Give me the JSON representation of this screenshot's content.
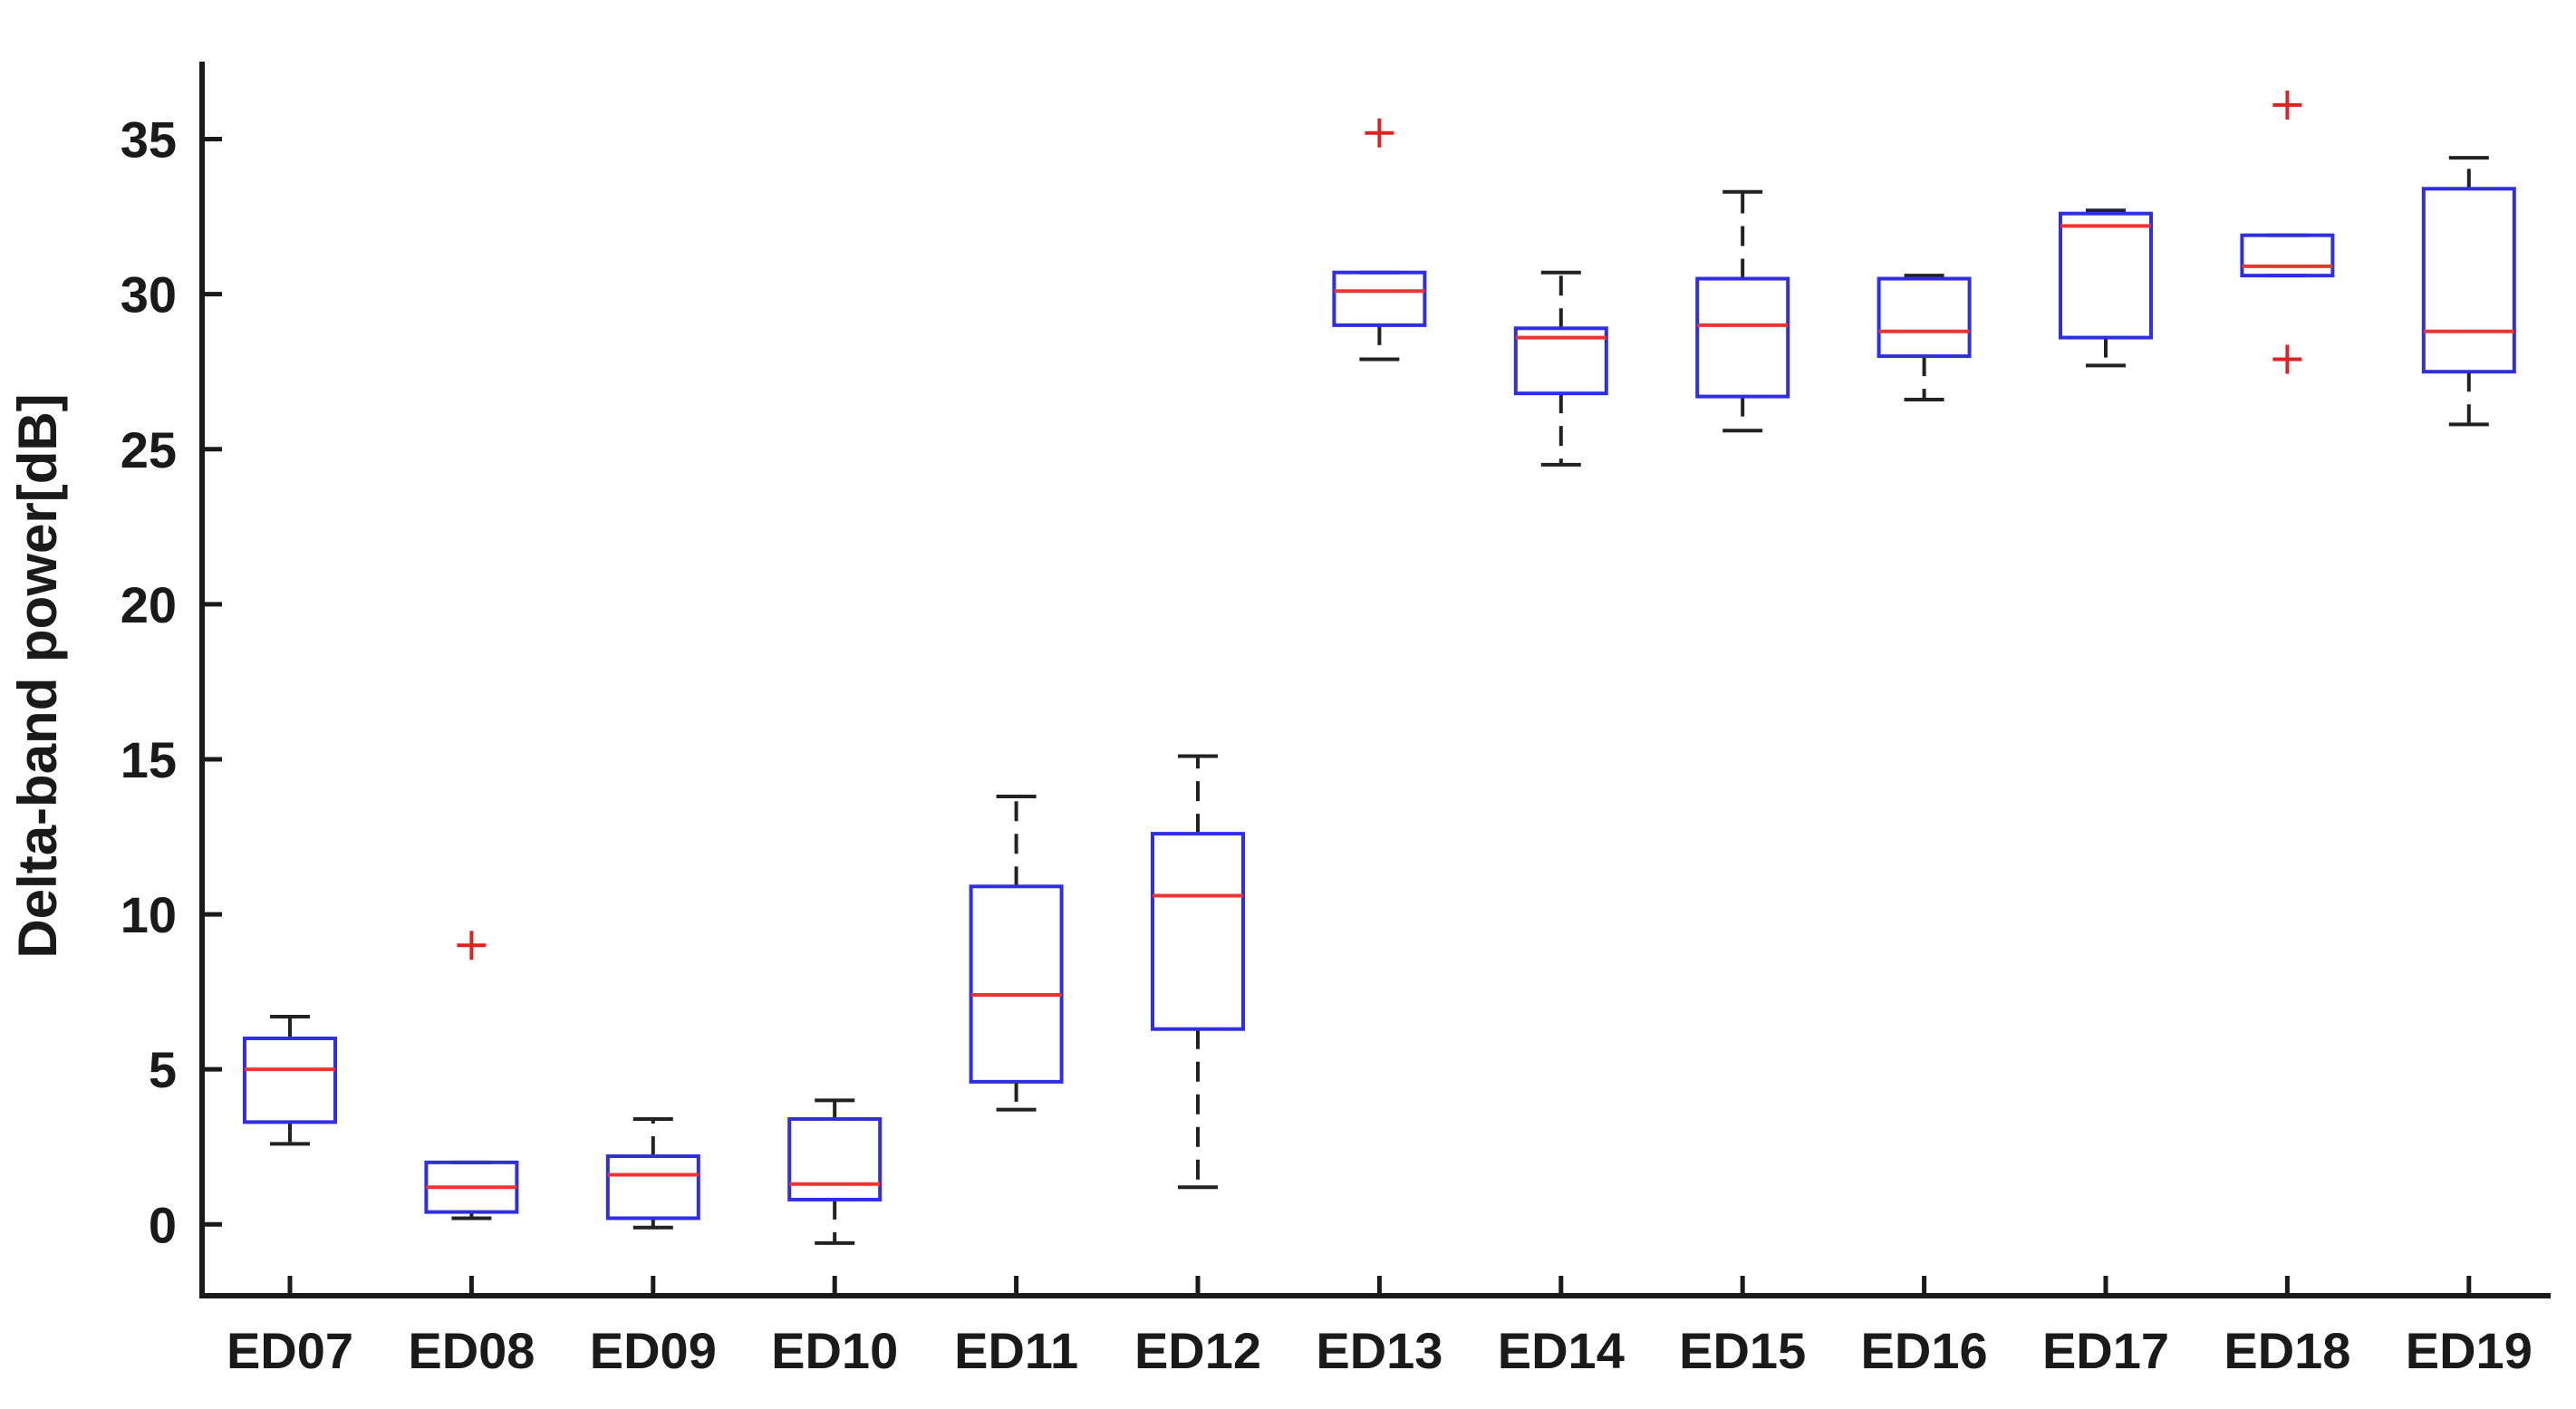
{
  "chart_data": {
    "type": "boxplot",
    "xlabel": "",
    "ylabel": "Delta-band power[dB]",
    "ylim": [
      -2.3,
      37.5
    ],
    "yticks": [
      0,
      5,
      10,
      15,
      20,
      25,
      30,
      35
    ],
    "grid": false,
    "categories": [
      "ED07",
      "ED08",
      "ED09",
      "ED10",
      "ED11",
      "ED12",
      "ED13",
      "ED14",
      "ED15",
      "ED16",
      "ED17",
      "ED18",
      "ED19"
    ],
    "boxes": [
      {
        "label": "ED07",
        "whisker_low": 2.6,
        "q1": 3.3,
        "median": 5.0,
        "q3": 6.0,
        "whisker_high": 6.7,
        "outliers": []
      },
      {
        "label": "ED08",
        "whisker_low": 0.2,
        "q1": 0.4,
        "median": 1.2,
        "q3": 2.0,
        "whisker_high": 2.0,
        "outliers": [
          9.0
        ]
      },
      {
        "label": "ED09",
        "whisker_low": -0.1,
        "q1": 0.2,
        "median": 1.6,
        "q3": 2.2,
        "whisker_high": 3.4,
        "outliers": []
      },
      {
        "label": "ED10",
        "whisker_low": -0.6,
        "q1": 0.8,
        "median": 1.3,
        "q3": 3.4,
        "whisker_high": 4.0,
        "outliers": []
      },
      {
        "label": "ED11",
        "whisker_low": 3.7,
        "q1": 4.6,
        "median": 7.4,
        "q3": 10.9,
        "whisker_high": 13.8,
        "outliers": []
      },
      {
        "label": "ED12",
        "whisker_low": 1.2,
        "q1": 6.3,
        "median": 10.6,
        "q3": 12.6,
        "whisker_high": 15.1,
        "outliers": []
      },
      {
        "label": "ED13",
        "whisker_low": 27.9,
        "q1": 29.0,
        "median": 30.1,
        "q3": 30.7,
        "whisker_high": 30.7,
        "outliers": [
          35.2
        ]
      },
      {
        "label": "ED14",
        "whisker_low": 24.5,
        "q1": 26.8,
        "median": 28.6,
        "q3": 28.9,
        "whisker_high": 30.7,
        "outliers": []
      },
      {
        "label": "ED15",
        "whisker_low": 25.6,
        "q1": 26.7,
        "median": 29.0,
        "q3": 30.5,
        "whisker_high": 33.3,
        "outliers": []
      },
      {
        "label": "ED16",
        "whisker_low": 26.6,
        "q1": 28.0,
        "median": 28.8,
        "q3": 30.5,
        "whisker_high": 30.6,
        "outliers": []
      },
      {
        "label": "ED17",
        "whisker_low": 27.7,
        "q1": 28.6,
        "median": 32.2,
        "q3": 32.6,
        "whisker_high": 32.7,
        "outliers": []
      },
      {
        "label": "ED18",
        "whisker_low": 30.6,
        "q1": 30.6,
        "median": 30.9,
        "q3": 31.9,
        "whisker_high": 31.9,
        "outliers": [
          36.1,
          27.9
        ]
      },
      {
        "label": "ED19",
        "whisker_low": 25.8,
        "q1": 27.5,
        "median": 28.8,
        "q3": 33.4,
        "whisker_high": 34.4,
        "outliers": []
      }
    ],
    "colors": {
      "box": "#2f2fe0",
      "median": "#ee3333",
      "whisker": "#222222",
      "outlier": "#dd2222",
      "axis": "#1a1a1a"
    }
  }
}
